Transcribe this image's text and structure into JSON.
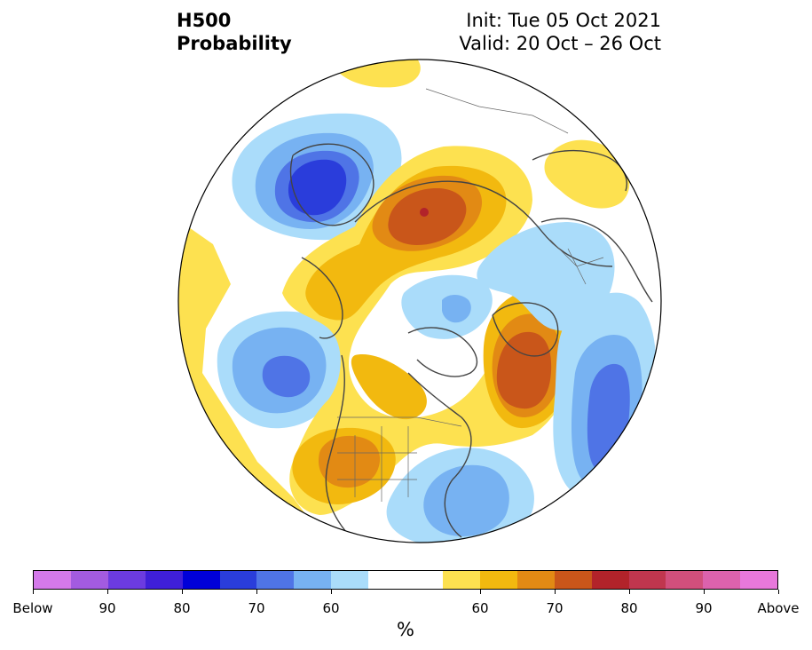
{
  "title": {
    "variable": "H500",
    "kind": "Probability",
    "init": "Init: Tue 05 Oct 2021",
    "valid": "Valid: 20 Oct – 26 Oct"
  },
  "map": {
    "projection": "north-polar-stereographic",
    "colors": {
      "below_60": "#aadcfa",
      "below_70": "#77b2f2",
      "below_80": "#4f74e6",
      "below_90": "#2a3ddb",
      "above_60": "#fde150",
      "above_70": "#f2b90f",
      "above_80": "#e28a14",
      "above_90": "#c9561a",
      "above_max": "#b2232a",
      "coastline": "#444444"
    }
  },
  "colorbar": {
    "segment_colors": [
      "#d479ea",
      "#a35be0",
      "#6c3be0",
      "#3f1fd8",
      "#0000d8",
      "#2a3ddb",
      "#4f74e6",
      "#77b2f2",
      "#aadcfa",
      "#ffffff",
      "#ffffff",
      "#fde150",
      "#f2b90f",
      "#e28a14",
      "#c9561a",
      "#b2232a",
      "#c0364e",
      "#d14f7c",
      "#dc62ad",
      "#e878db"
    ],
    "tick_labels": [
      "Below",
      "90",
      "80",
      "70",
      "60",
      "60",
      "70",
      "80",
      "90",
      "Above"
    ],
    "unit_label": "%"
  }
}
